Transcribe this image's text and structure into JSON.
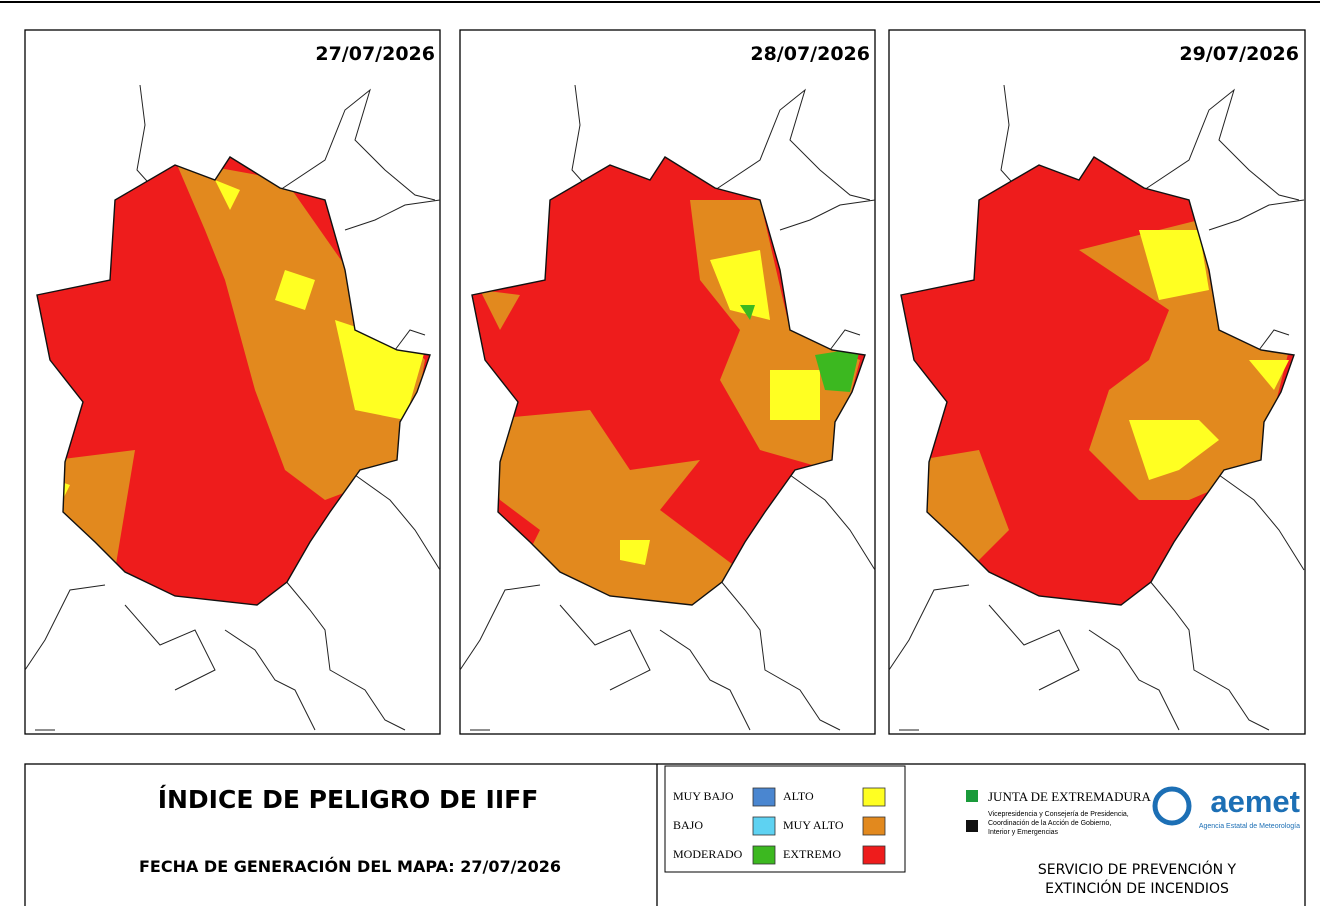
{
  "maps": [
    {
      "date": "27/07/2026"
    },
    {
      "date": "28/07/2026"
    },
    {
      "date": "29/07/2026"
    }
  ],
  "footer": {
    "title": "ÍNDICE DE PELIGRO DE IIFF",
    "generated": "FECHA DE GENERACIÓN DEL MAPA: 27/07/2026"
  },
  "legend": [
    {
      "label": "MUY BAJO",
      "color": "#4a86d0"
    },
    {
      "label": "BAJO",
      "color": "#5ed2f2"
    },
    {
      "label": "MODERADO",
      "color": "#3cb820"
    },
    {
      "label": "ALTO",
      "color": "#ffff22"
    },
    {
      "label": "MUY ALTO",
      "color": "#e2891e"
    },
    {
      "label": "EXTREMO",
      "color": "#ee1c1c"
    }
  ],
  "logos": {
    "junta": "JUNTA DE EXTREMADURA",
    "junta_sub": [
      "Vicepresidencia y Consejería de Presidencia,",
      "Coordinación de la Acción de Gobierno,",
      "Interior y Emergencias"
    ],
    "aemet": "aemet",
    "aemet_sub": "Agencia Estatal de Meteorología",
    "service": [
      "SERVICIO DE PREVENCIÓN Y",
      "EXTINCIÓN DE INCENDIOS"
    ]
  }
}
